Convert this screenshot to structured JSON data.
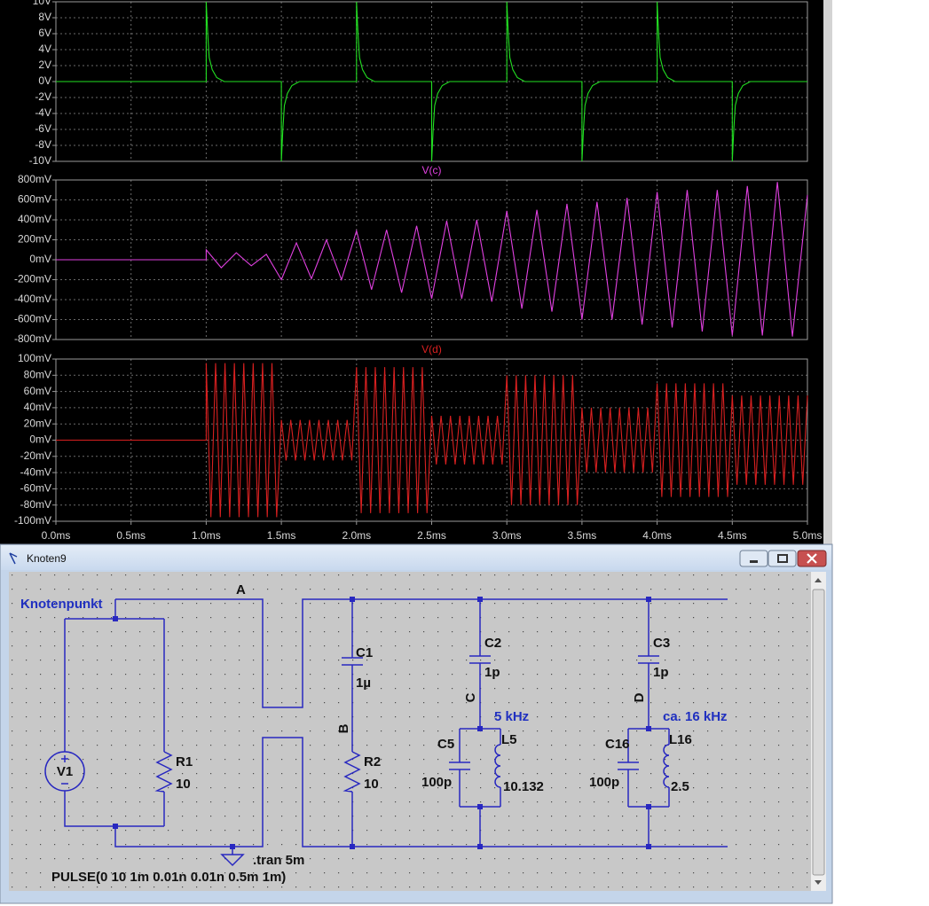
{
  "chart_data": [
    {
      "type": "line",
      "xlim": [
        0,
        5
      ],
      "ylim": [
        -10,
        10
      ],
      "yticks": [
        {
          "value": 10,
          "label": "10V"
        },
        {
          "value": 8,
          "label": "8V"
        },
        {
          "value": 6,
          "label": "6V"
        },
        {
          "value": 4,
          "label": "4V"
        },
        {
          "value": 2,
          "label": "2V"
        },
        {
          "value": 0,
          "label": "0V"
        },
        {
          "value": -2,
          "label": "-2V"
        },
        {
          "value": -4,
          "label": "-4V"
        },
        {
          "value": -6,
          "label": "-6V"
        },
        {
          "value": -8,
          "label": "-8V"
        },
        {
          "value": -10,
          "label": "-10V"
        }
      ],
      "grid": true,
      "series": [
        {
          "color": "#22e022",
          "x": [
            0,
            1,
            1,
            1.01,
            1.02,
            1.04,
            1.07,
            1.12,
            1.5,
            1.5,
            1.51,
            1.52,
            1.54,
            1.57,
            1.62,
            2,
            2,
            2.01,
            2.02,
            2.04,
            2.07,
            2.12,
            2.5,
            2.5,
            2.51,
            2.52,
            2.54,
            2.57,
            2.62,
            3,
            3,
            3.01,
            3.02,
            3.04,
            3.07,
            3.12,
            3.5,
            3.5,
            3.51,
            3.52,
            3.54,
            3.57,
            3.62,
            4,
            4,
            4.01,
            4.02,
            4.04,
            4.07,
            4.12,
            4.5,
            4.5,
            4.51,
            4.52,
            4.54,
            4.57,
            4.62,
            5
          ],
          "values": [
            0,
            0,
            10,
            6,
            3,
            1.5,
            0.5,
            0,
            0,
            -10,
            -6,
            -3,
            -1.5,
            -0.5,
            0,
            0,
            10,
            6,
            3,
            1.5,
            0.5,
            0,
            0,
            -10,
            -6,
            -3,
            -1.5,
            -0.5,
            0,
            0,
            10,
            6,
            3,
            1.5,
            0.5,
            0,
            0,
            -10,
            -6,
            -3,
            -1.5,
            -0.5,
            0,
            0,
            10,
            6,
            3,
            1.5,
            0.5,
            0,
            0,
            -10,
            -6,
            -3,
            -1.5,
            -0.5,
            0,
            0
          ]
        }
      ]
    },
    {
      "type": "line",
      "title": "V(c)",
      "xlim": [
        0,
        5
      ],
      "ylim": [
        -800,
        800
      ],
      "yticks": [
        {
          "value": 800,
          "label": "800mV"
        },
        {
          "value": 600,
          "label": "600mV"
        },
        {
          "value": 400,
          "label": "400mV"
        },
        {
          "value": 200,
          "label": "200mV"
        },
        {
          "value": 0,
          "label": "0mV"
        },
        {
          "value": -200,
          "label": "-200mV"
        },
        {
          "value": -400,
          "label": "-400mV"
        },
        {
          "value": -600,
          "label": "-600mV"
        },
        {
          "value": -800,
          "label": "-800mV"
        }
      ],
      "grid": true,
      "series": [
        {
          "color": "#e040e0",
          "x": [
            0,
            1,
            1,
            1.1,
            1.2,
            1.3,
            1.4,
            1.5,
            1.6,
            1.7,
            1.8,
            1.9,
            2,
            2.1,
            2.2,
            2.3,
            2.4,
            2.5,
            2.6,
            2.7,
            2.8,
            2.9,
            3,
            3.1,
            3.2,
            3.3,
            3.4,
            3.5,
            3.6,
            3.7,
            3.8,
            3.9,
            4,
            4.1,
            4.2,
            4.3,
            4.4,
            4.5,
            4.6,
            4.7,
            4.8,
            4.9,
            5
          ],
          "values": [
            0,
            0,
            100,
            -80,
            70,
            -60,
            55,
            -200,
            170,
            -190,
            200,
            -200,
            290,
            -300,
            300,
            -330,
            340,
            -390,
            390,
            -390,
            400,
            -420,
            490,
            -490,
            500,
            -520,
            560,
            -600,
            580,
            -600,
            620,
            -650,
            680,
            -680,
            700,
            -720,
            700,
            -760,
            740,
            -760,
            780,
            -770,
            650
          ]
        }
      ]
    },
    {
      "type": "line",
      "title": "V(d)",
      "xlim": [
        0,
        5
      ],
      "ylim": [
        -100,
        100
      ],
      "yticks": [
        {
          "value": 100,
          "label": "100mV"
        },
        {
          "value": 80,
          "label": "80mV"
        },
        {
          "value": 60,
          "label": "60mV"
        },
        {
          "value": 40,
          "label": "40mV"
        },
        {
          "value": 20,
          "label": "20mV"
        },
        {
          "value": 0,
          "label": "0mV"
        },
        {
          "value": -20,
          "label": "-20mV"
        },
        {
          "value": -40,
          "label": "-40mV"
        },
        {
          "value": -60,
          "label": "-60mV"
        },
        {
          "value": -80,
          "label": "-80mV"
        },
        {
          "value": -100,
          "label": "-100mV"
        }
      ],
      "xticks": [
        {
          "value": 0,
          "label": "0.0ms"
        },
        {
          "value": 0.5,
          "label": "0.5ms"
        },
        {
          "value": 1,
          "label": "1.0ms"
        },
        {
          "value": 1.5,
          "label": "1.5ms"
        },
        {
          "value": 2,
          "label": "2.0ms"
        },
        {
          "value": 2.5,
          "label": "2.5ms"
        },
        {
          "value": 3,
          "label": "3.0ms"
        },
        {
          "value": 3.5,
          "label": "3.5ms"
        },
        {
          "value": 4,
          "label": "4.0ms"
        },
        {
          "value": 4.5,
          "label": "4.5ms"
        },
        {
          "value": 5,
          "label": "5.0ms"
        }
      ],
      "grid": true,
      "series": [
        {
          "color": "#d82020",
          "x": [
            0,
            1,
            1,
            1.03125,
            1.0625,
            1.09375,
            1.125,
            1.15625,
            1.1875,
            1.21875,
            1.25,
            1.28125,
            1.3125,
            1.34375,
            1.375,
            1.40625,
            1.4375,
            1.46875,
            1.5,
            1.53125,
            1.5625,
            1.59375,
            1.625,
            1.65625,
            1.6875,
            1.71875,
            1.75,
            1.78125,
            1.8125,
            1.84375,
            1.875,
            1.90625,
            1.9375,
            1.96875,
            2,
            2.03125,
            2.0625,
            2.09375,
            2.125,
            2.15625,
            2.1875,
            2.21875,
            2.25,
            2.28125,
            2.3125,
            2.34375,
            2.375,
            2.40625,
            2.4375,
            2.46875,
            2.5,
            2.53125,
            2.5625,
            2.59375,
            2.625,
            2.65625,
            2.6875,
            2.71875,
            2.75,
            2.78125,
            2.8125,
            2.84375,
            2.875,
            2.90625,
            2.9375,
            2.96875,
            3,
            3.03125,
            3.0625,
            3.09375,
            3.125,
            3.15625,
            3.1875,
            3.21875,
            3.25,
            3.28125,
            3.3125,
            3.34375,
            3.375,
            3.40625,
            3.4375,
            3.46875,
            3.5,
            3.53125,
            3.5625,
            3.59375,
            3.625,
            3.65625,
            3.6875,
            3.71875,
            3.75,
            3.78125,
            3.8125,
            3.84375,
            3.875,
            3.90625,
            3.9375,
            3.96875,
            4,
            4.03125,
            4.0625,
            4.09375,
            4.125,
            4.15625,
            4.1875,
            4.21875,
            4.25,
            4.28125,
            4.3125,
            4.34375,
            4.375,
            4.40625,
            4.4375,
            4.46875,
            4.5,
            4.53125,
            4.5625,
            4.59375,
            4.625,
            4.65625,
            4.6875,
            4.71875,
            4.75,
            4.78125,
            4.8125,
            4.84375,
            4.875,
            4.90625,
            4.9375,
            4.96875,
            5
          ],
          "values": [
            0,
            0,
            95,
            -95,
            95,
            -95,
            95,
            -95,
            95,
            -95,
            95,
            -95,
            95,
            -95,
            95,
            -95,
            95,
            -95,
            25,
            -25,
            25,
            -25,
            25,
            -25,
            25,
            -25,
            25,
            -25,
            25,
            -25,
            25,
            -25,
            25,
            -25,
            90,
            -90,
            90,
            -90,
            90,
            -90,
            90,
            -90,
            90,
            -90,
            90,
            -90,
            90,
            -90,
            90,
            -90,
            30,
            -30,
            30,
            -30,
            30,
            -30,
            30,
            -30,
            30,
            -30,
            30,
            -30,
            30,
            -30,
            30,
            -30,
            80,
            -80,
            80,
            -80,
            80,
            -80,
            80,
            -80,
            80,
            -80,
            80,
            -80,
            80,
            -80,
            80,
            -80,
            40,
            -40,
            40,
            -40,
            40,
            -40,
            40,
            -40,
            40,
            -40,
            40,
            -40,
            40,
            -40,
            40,
            -40,
            70,
            -70,
            70,
            -70,
            70,
            -70,
            70,
            -70,
            70,
            -70,
            70,
            -70,
            70,
            -70,
            70,
            -70,
            55,
            -55,
            55,
            -55,
            55,
            -55,
            55,
            -55,
            55,
            -55,
            55,
            -55,
            55,
            -55,
            55,
            -55,
            55
          ]
        }
      ]
    }
  ],
  "window": {
    "title": "Knoten9",
    "net_labels": [
      "Knotenpunkt",
      "A",
      "B",
      "C",
      "D"
    ],
    "comments": [
      "5 kHz",
      "ca. 16 kHz"
    ],
    "components": [
      {
        "name": "V1",
        "value": "PULSE(0 10 1m 0.01n 0.01n 0.5m 1m)"
      },
      {
        "name": "R1",
        "value": "10"
      },
      {
        "name": "C1",
        "value": "1µ"
      },
      {
        "name": "R2",
        "value": "10"
      },
      {
        "name": "C2",
        "value": "1p"
      },
      {
        "name": "C5",
        "value": "100p"
      },
      {
        "name": "L5",
        "value": "10.132"
      },
      {
        "name": "C3",
        "value": "1p"
      },
      {
        "name": "C16",
        "value": "100p"
      },
      {
        "name": "L16",
        "value": "2.5"
      }
    ],
    "directive": ".tran 5m"
  }
}
